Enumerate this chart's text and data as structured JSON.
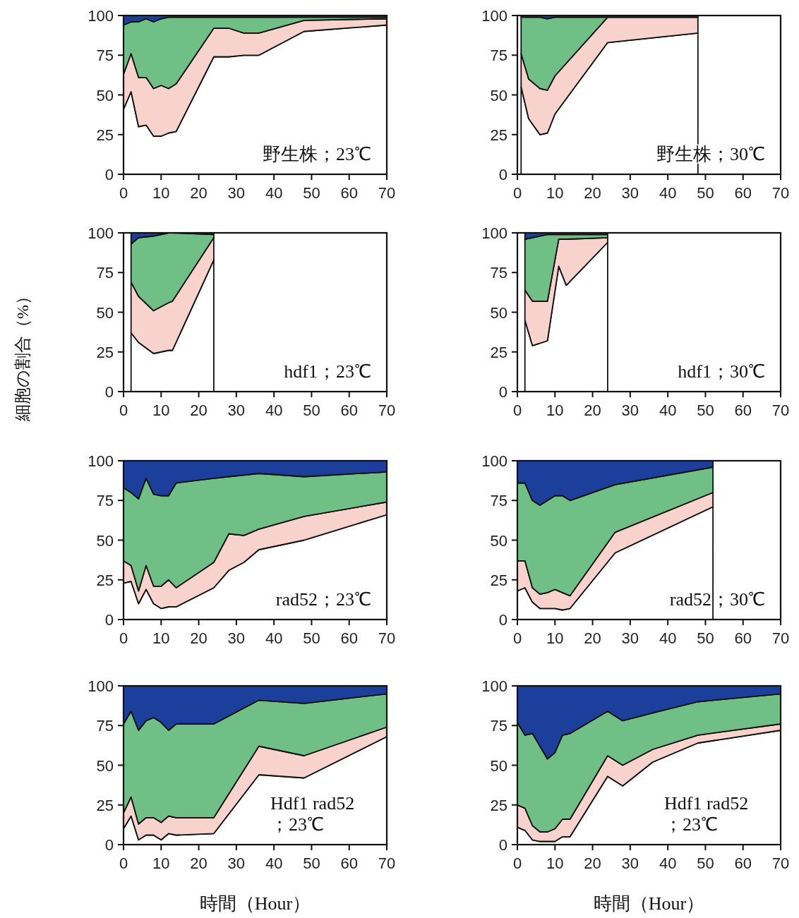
{
  "chart_data": [
    {
      "type": "area",
      "stacked": true,
      "annotations": [
        "野生株；23℃"
      ],
      "xlim": [
        0,
        70
      ],
      "ylim": [
        0,
        100
      ],
      "xticks": [
        0,
        10,
        20,
        30,
        40,
        50,
        60,
        70
      ],
      "yticks": [
        0,
        25,
        50,
        75,
        100
      ],
      "x": [
        0,
        2,
        4,
        6,
        8,
        10,
        12,
        14,
        24,
        28,
        32,
        36,
        48,
        70
      ],
      "series": [
        {
          "color": "#ffffff",
          "values": [
            41,
            52,
            30,
            31,
            24,
            24,
            26,
            27,
            74,
            74,
            75,
            75,
            90,
            94
          ]
        },
        {
          "color": "#f8d2cc",
          "values": [
            22,
            24,
            31,
            30,
            30,
            32,
            28,
            30,
            18,
            18,
            14,
            14,
            7,
            4
          ]
        },
        {
          "color": "#6fbf86",
          "values": [
            31,
            20,
            35,
            37,
            42,
            42,
            45,
            42,
            7,
            7,
            10,
            10,
            2,
            1
          ]
        },
        {
          "color": "#1d3f9c",
          "values": [
            6,
            4,
            4,
            2,
            4,
            2,
            1,
            1,
            1,
            1,
            1,
            1,
            1,
            1
          ]
        }
      ]
    },
    {
      "type": "area",
      "stacked": true,
      "annotations": [
        "野生株；30℃"
      ],
      "xlim": [
        0,
        70
      ],
      "ylim": [
        0,
        100
      ],
      "xticks": [
        0,
        10,
        20,
        30,
        40,
        50,
        60,
        70
      ],
      "yticks": [
        0,
        25,
        50,
        75,
        100
      ],
      "x": [
        1,
        3,
        6,
        8,
        10,
        24,
        48
      ],
      "series": [
        {
          "color": "#ffffff",
          "values": [
            55,
            35,
            25,
            26,
            38,
            83,
            89
          ]
        },
        {
          "color": "#f8d2cc",
          "values": [
            21,
            25,
            29,
            27,
            24,
            16,
            10
          ]
        },
        {
          "color": "#6fbf86",
          "values": [
            23,
            39,
            45,
            45,
            37,
            0,
            0
          ]
        },
        {
          "color": "#1d3f9c",
          "values": [
            1,
            1,
            1,
            2,
            1,
            1,
            1
          ]
        }
      ]
    },
    {
      "type": "area",
      "stacked": true,
      "ylabel": "細胞の割合（%）",
      "annotations": [
        "hdf1；23℃"
      ],
      "xlim": [
        0,
        70
      ],
      "ylim": [
        0,
        100
      ],
      "xticks": [
        0,
        10,
        20,
        30,
        40,
        50,
        60,
        70
      ],
      "yticks": [
        0,
        25,
        50,
        75,
        100
      ],
      "x": [
        2,
        4,
        8,
        12,
        13,
        24
      ],
      "series": [
        {
          "color": "#ffffff",
          "values": [
            37,
            31,
            24,
            26,
            26,
            83
          ]
        },
        {
          "color": "#f8d2cc",
          "values": [
            32,
            29,
            27,
            30,
            31,
            14
          ]
        },
        {
          "color": "#6fbf86",
          "values": [
            24,
            37,
            47,
            44,
            43,
            2
          ]
        },
        {
          "color": "#1d3f9c",
          "values": [
            7,
            3,
            2,
            0,
            0,
            1
          ]
        }
      ]
    },
    {
      "type": "area",
      "stacked": true,
      "annotations": [
        "hdf1；30℃"
      ],
      "xlim": [
        0,
        70
      ],
      "ylim": [
        0,
        100
      ],
      "xticks": [
        0,
        10,
        20,
        30,
        40,
        50,
        60,
        70
      ],
      "yticks": [
        0,
        25,
        50,
        75,
        100
      ],
      "x": [
        2,
        4,
        8,
        11,
        13,
        24
      ],
      "series": [
        {
          "color": "#ffffff",
          "values": [
            45,
            29,
            32,
            79,
            67,
            94
          ]
        },
        {
          "color": "#f8d2cc",
          "values": [
            19,
            28,
            25,
            17,
            29,
            3
          ]
        },
        {
          "color": "#6fbf86",
          "values": [
            32,
            40,
            42,
            3,
            3,
            2
          ]
        },
        {
          "color": "#1d3f9c",
          "values": [
            4,
            3,
            1,
            1,
            1,
            1
          ]
        }
      ]
    },
    {
      "type": "area",
      "stacked": true,
      "annotations": [
        "rad52；23℃"
      ],
      "xlim": [
        0,
        70
      ],
      "ylim": [
        0,
        100
      ],
      "xticks": [
        0,
        10,
        20,
        30,
        40,
        50,
        60,
        70
      ],
      "yticks": [
        0,
        25,
        50,
        75,
        100
      ],
      "x": [
        0,
        2,
        4,
        6,
        8,
        10,
        12,
        14,
        24,
        28,
        32,
        36,
        48,
        70
      ],
      "series": [
        {
          "color": "#ffffff",
          "values": [
            23,
            24,
            10,
            19,
            10,
            7,
            8,
            8,
            20,
            31,
            36,
            44,
            50,
            66
          ]
        },
        {
          "color": "#f8d2cc",
          "values": [
            14,
            10,
            8,
            15,
            11,
            14,
            17,
            12,
            16,
            23,
            17,
            13,
            15,
            8
          ]
        },
        {
          "color": "#6fbf86",
          "values": [
            46,
            46,
            58,
            55,
            58,
            57,
            53,
            66,
            53,
            36,
            38,
            35,
            25,
            19
          ]
        },
        {
          "color": "#1d3f9c",
          "values": [
            17,
            20,
            24,
            11,
            21,
            22,
            22,
            14,
            11,
            10,
            9,
            8,
            10,
            7
          ]
        }
      ]
    },
    {
      "type": "area",
      "stacked": true,
      "annotations": [
        "rad52；30℃"
      ],
      "xlim": [
        0,
        70
      ],
      "ylim": [
        0,
        100
      ],
      "xticks": [
        0,
        10,
        20,
        30,
        40,
        50,
        60,
        70
      ],
      "yticks": [
        0,
        25,
        50,
        75,
        100
      ],
      "x": [
        0,
        2,
        4,
        6,
        8,
        10,
        12,
        14,
        26,
        52
      ],
      "series": [
        {
          "color": "#ffffff",
          "values": [
            18,
            20,
            11,
            7,
            7,
            7,
            6,
            7,
            42,
            71
          ]
        },
        {
          "color": "#f8d2cc",
          "values": [
            19,
            17,
            9,
            9,
            10,
            12,
            11,
            8,
            13,
            9
          ]
        },
        {
          "color": "#6fbf86",
          "values": [
            49,
            49,
            55,
            56,
            58,
            59,
            61,
            60,
            30,
            16
          ]
        },
        {
          "color": "#1d3f9c",
          "values": [
            14,
            14,
            25,
            28,
            25,
            22,
            22,
            25,
            15,
            4
          ]
        }
      ]
    },
    {
      "type": "area",
      "stacked": true,
      "xlabel": "時間（Hour）",
      "annotations": [
        "Hdf1 rad52\n；23℃"
      ],
      "xlim": [
        0,
        70
      ],
      "ylim": [
        0,
        100
      ],
      "xticks": [
        0,
        10,
        20,
        30,
        40,
        50,
        60,
        70
      ],
      "yticks": [
        0,
        25,
        50,
        75,
        100
      ],
      "x": [
        0,
        2,
        4,
        6,
        8,
        10,
        12,
        14,
        24,
        36,
        48,
        70
      ],
      "series": [
        {
          "color": "#ffffff",
          "values": [
            10,
            18,
            3,
            6,
            6,
            3,
            7,
            6,
            7,
            44,
            42,
            68
          ]
        },
        {
          "color": "#f8d2cc",
          "values": [
            10,
            12,
            10,
            11,
            11,
            11,
            11,
            11,
            10,
            18,
            14,
            6
          ]
        },
        {
          "color": "#6fbf86",
          "values": [
            56,
            54,
            59,
            61,
            63,
            63,
            54,
            59,
            59,
            29,
            33,
            21
          ]
        },
        {
          "color": "#1d3f9c",
          "values": [
            24,
            16,
            28,
            22,
            20,
            23,
            28,
            24,
            24,
            9,
            11,
            5
          ]
        }
      ]
    },
    {
      "type": "area",
      "stacked": true,
      "xlabel": "時間（Hour）",
      "annotations": [
        "Hdf1 rad52\n；23℃"
      ],
      "xlim": [
        0,
        70
      ],
      "ylim": [
        0,
        100
      ],
      "xticks": [
        0,
        10,
        20,
        30,
        40,
        50,
        60,
        70
      ],
      "yticks": [
        0,
        25,
        50,
        75,
        100
      ],
      "x": [
        0,
        2,
        4,
        6,
        8,
        10,
        12,
        14,
        24,
        28,
        36,
        48,
        70
      ],
      "series": [
        {
          "color": "#ffffff",
          "values": [
            11,
            9,
            3,
            2,
            2,
            2,
            5,
            5,
            43,
            37,
            52,
            64,
            72
          ]
        },
        {
          "color": "#f8d2cc",
          "values": [
            14,
            14,
            9,
            6,
            6,
            8,
            11,
            11,
            13,
            13,
            8,
            5,
            4
          ]
        },
        {
          "color": "#6fbf86",
          "values": [
            52,
            46,
            58,
            54,
            46,
            48,
            53,
            54,
            28,
            28,
            23,
            21,
            19
          ]
        },
        {
          "color": "#1d3f9c",
          "values": [
            23,
            31,
            30,
            38,
            46,
            42,
            31,
            30,
            16,
            22,
            17,
            10,
            5
          ]
        }
      ]
    }
  ]
}
